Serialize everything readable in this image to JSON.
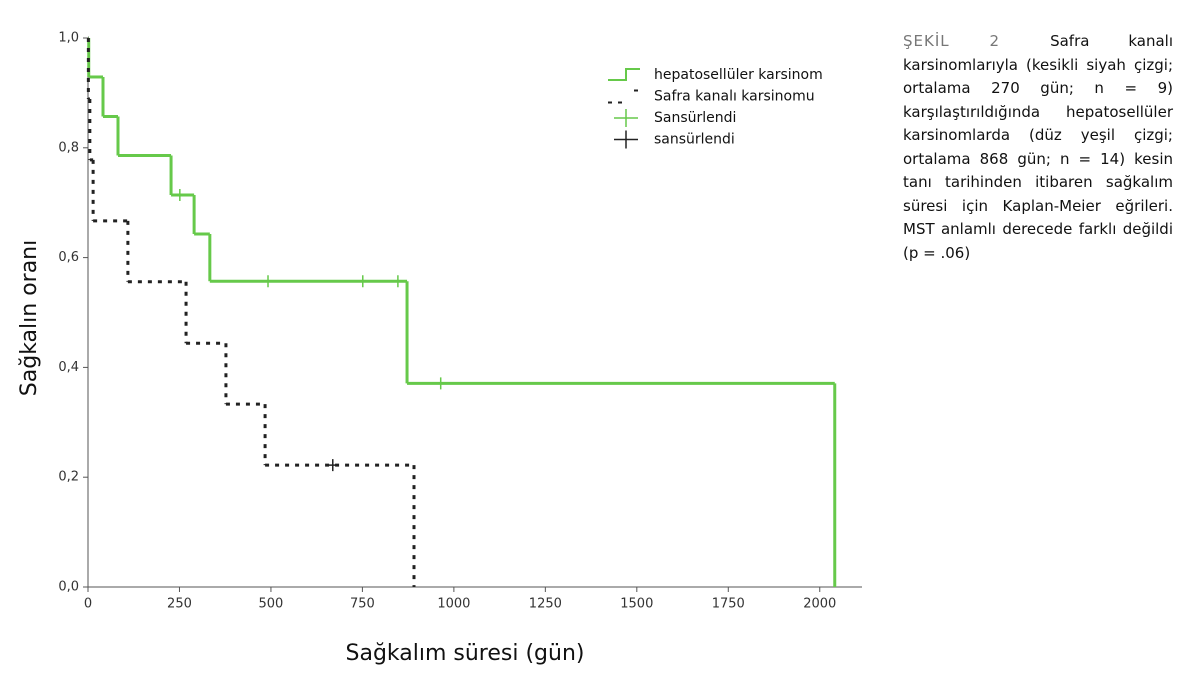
{
  "chart_data": {
    "type": "step",
    "x_label": "Sağkalım süresi (gün)",
    "y_label": "Sağkalın oranı",
    "xlim": [
      0,
      2110
    ],
    "ylim": [
      0,
      1
    ],
    "xticks": [
      0,
      250,
      500,
      750,
      1000,
      1250,
      1500,
      1750,
      2000
    ],
    "yticks": [
      {
        "value": 0,
        "label": "0,0"
      },
      {
        "value": 0.2,
        "label": "0,2"
      },
      {
        "value": 0.4,
        "label": "0,4"
      },
      {
        "value": 0.6,
        "label": "0,6"
      },
      {
        "value": 0.8,
        "label": "0,8"
      },
      {
        "value": 1,
        "label": "1,0"
      }
    ],
    "series": [
      {
        "name": "hepatosellüler karsinom",
        "kind": "step",
        "dash": false,
        "color": "#66c94a",
        "x": [
          0,
          2,
          41,
          82,
          227,
          290,
          333,
          872,
          2041
        ],
        "values": [
          1,
          0.929,
          0.857,
          0.786,
          0.714,
          0.643,
          0.557,
          0.371,
          0
        ]
      },
      {
        "name": "Safra kanalı karsinomu",
        "kind": "step",
        "dash": true,
        "color": "#222222",
        "x": [
          0,
          1,
          5,
          14,
          109,
          268,
          377,
          484,
          891
        ],
        "values": [
          1,
          0.889,
          0.778,
          0.667,
          0.556,
          0.444,
          0.333,
          0.222,
          0
        ]
      },
      {
        "name": "Sansürlendi",
        "kind": "censor",
        "dash": false,
        "color": "#66c94a",
        "x": [
          251,
          492,
          751,
          847,
          964
        ],
        "values": [
          0.714,
          0.557,
          0.557,
          0.557,
          0.371
        ]
      },
      {
        "name": "sansürlendi",
        "kind": "censor",
        "dash": false,
        "color": "#222222",
        "x": [
          669
        ],
        "values": [
          0.222
        ]
      }
    ],
    "caption_label": "ŞEKİL 2",
    "caption": "Safra kanalı karsinomlarıyla (kesikli siyah çizgi; ortalama 270 gün; n = 9) karşılaştırıldığında hepatosellüler karsinomlarda (düz yeşil çizgi; ortalama 868 gün; n = 14) kesin tanı tarihinden itibaren sağkalım süresi için Kaplan-Meier eğrileri. MST anlamlı derecede farklı değildi (p = .06)"
  }
}
